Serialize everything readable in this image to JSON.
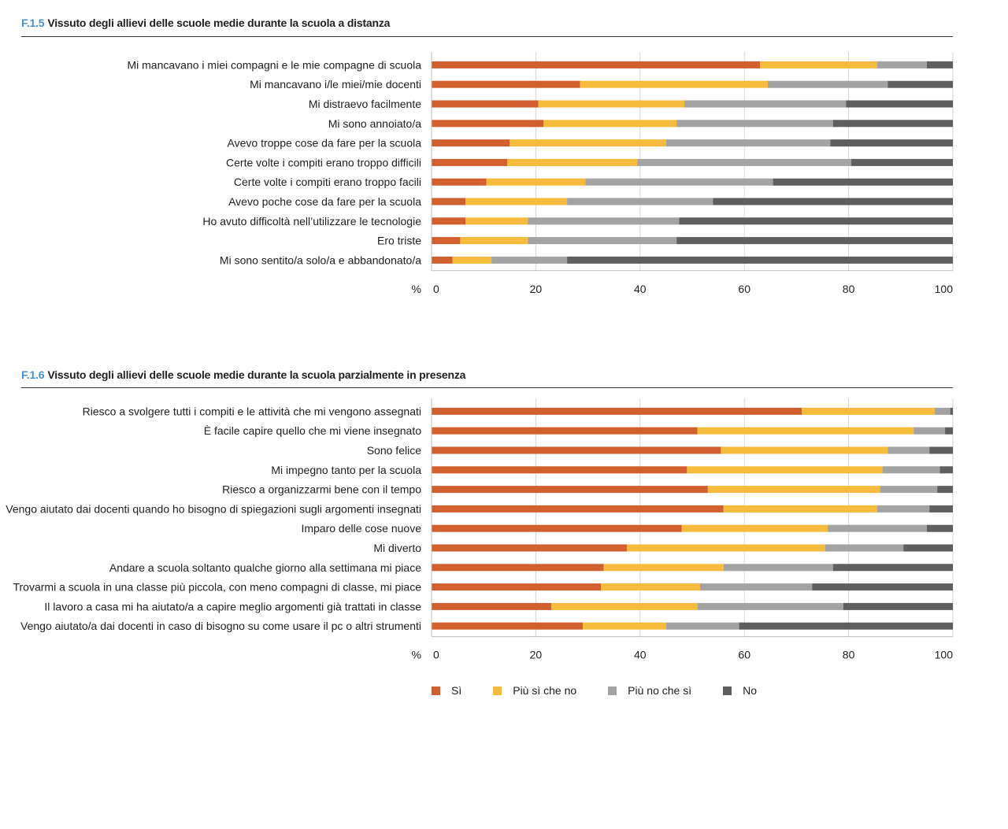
{
  "colors": {
    "si": "#d2602f",
    "piu_si": "#f5bb3c",
    "piu_no": "#a3a3a3",
    "no": "#5f5f5f",
    "title_code": "#4a8fd0"
  },
  "legend": {
    "items": [
      "Sì",
      "Più sì che no",
      "Più no che sì",
      "No"
    ]
  },
  "chart_data": [
    {
      "type": "bar",
      "orientation": "horizontal",
      "stacked": true,
      "code": "F.1.5",
      "title": "Vissuto degli allievi delle scuole medie durante la scuola a distanza",
      "xlabel": "%",
      "xlim": [
        0,
        100
      ],
      "ticks": [
        "0",
        "20",
        "40",
        "60",
        "80",
        "100"
      ],
      "categories": [
        "Mi mancavano i miei compagni e le mie compagne di scuola",
        "Mi mancavano i/le miei/mie docenti",
        "Mi distraevo facilmente",
        "Mi sono annoiato/a",
        "Avevo troppe cose da fare per la scuola",
        "Certe volte i compiti erano troppo difficili",
        "Certe volte i compiti erano troppo facili",
        "Avevo poche cose da fare per la scuola",
        "Ho avuto difficoltà nell’utilizzare le tecnologie",
        "Ero triste",
        "Mi sono sentito/a solo/a e abbandonato/a"
      ],
      "series": [
        {
          "name": "Sì",
          "values": [
            63,
            28.5,
            20.5,
            21.5,
            15,
            14.5,
            10.5,
            6.5,
            6.5,
            5.5,
            4
          ]
        },
        {
          "name": "Più sì che no",
          "values": [
            22.5,
            36,
            28,
            25.5,
            30,
            25,
            19,
            19.5,
            12,
            13,
            7.5
          ]
        },
        {
          "name": "Più no che sì",
          "values": [
            9.5,
            23,
            31,
            30,
            31.5,
            41,
            36,
            28,
            29,
            28.5,
            14.5
          ]
        },
        {
          "name": "No",
          "values": [
            5,
            12.5,
            20.5,
            23,
            23.5,
            19.5,
            34.5,
            46,
            52.5,
            53,
            74
          ]
        }
      ]
    },
    {
      "type": "bar",
      "orientation": "horizontal",
      "stacked": true,
      "code": "F.1.6",
      "title": "Vissuto degli allievi delle scuole medie durante la scuola parzialmente in presenza",
      "xlabel": "%",
      "xlim": [
        0,
        100
      ],
      "ticks": [
        "0",
        "20",
        "40",
        "60",
        "80",
        "100"
      ],
      "categories": [
        "Riesco a svolgere tutti i compiti e le attività che mi vengono assegnati",
        "È facile capire quello che mi viene insegnato",
        "Sono felice",
        "Mi impegno tanto per la scuola",
        "Riesco a organizzarmi bene con il tempo",
        "Vengo aiutato dai docenti quando ho bisogno di spiegazioni sugli argomenti insegnati",
        "Imparo delle cose nuove",
        "Mi diverto",
        "Andare a scuola soltanto qualche giorno alla settimana mi piace",
        "Trovarmi a scuola in una classe più piccola, con meno compagni di classe, mi piace",
        "Il lavoro a casa mi ha aiutato/a a capire meglio argomenti già trattati in classe",
        "Vengo aiutato/a dai docenti in caso di bisogno su come usare il pc o altri strumenti"
      ],
      "series": [
        {
          "name": "Sì",
          "values": [
            71,
            51,
            55.5,
            49,
            53,
            56,
            48,
            37.5,
            33,
            32.5,
            23,
            29
          ]
        },
        {
          "name": "Più sì che no",
          "values": [
            25.5,
            41.5,
            32,
            37.5,
            33,
            29.5,
            28,
            38,
            23,
            19,
            28,
            16
          ]
        },
        {
          "name": "Più no che sì",
          "values": [
            3,
            6,
            8,
            11,
            11,
            10,
            19,
            15,
            21,
            21.5,
            28,
            14
          ]
        },
        {
          "name": "No",
          "values": [
            0.5,
            1.5,
            4.5,
            2.5,
            3,
            4.5,
            5,
            9.5,
            23,
            27,
            21,
            41
          ]
        }
      ]
    }
  ]
}
